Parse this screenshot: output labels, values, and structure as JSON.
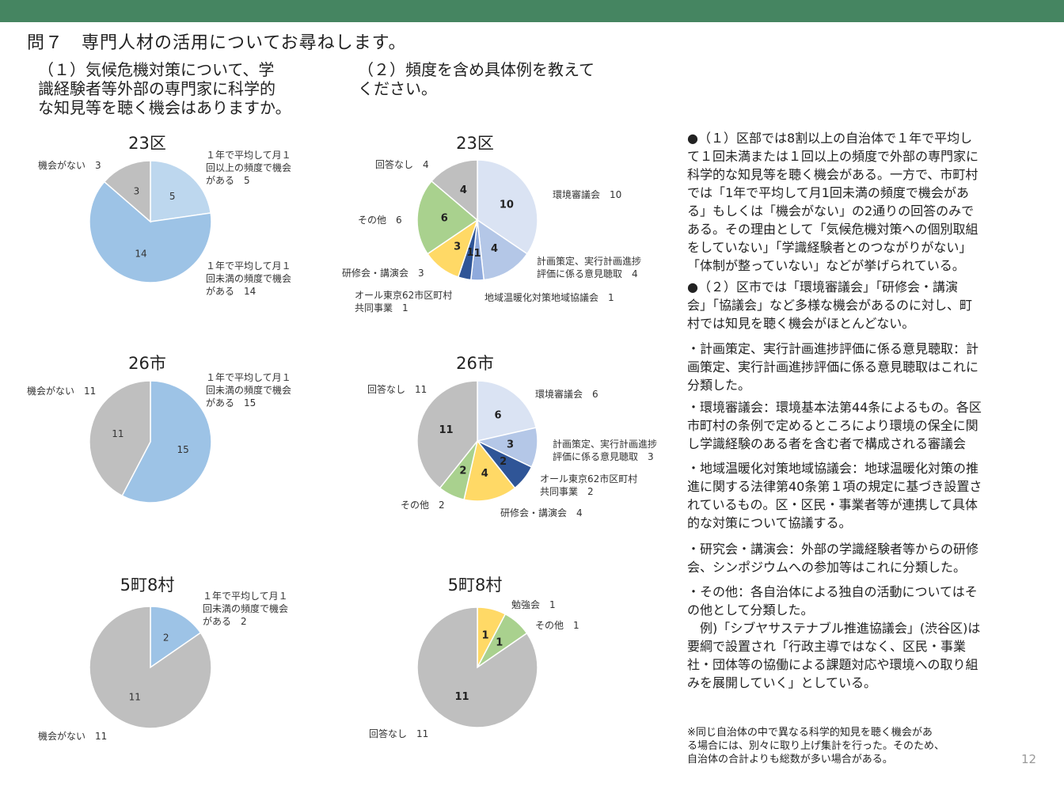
{
  "header": {
    "question": "問７　専門人材の活用についてお尋ねします。"
  },
  "subheads": {
    "q1": "（１）気候危機対策について、学\n識経験者等外部の専門家に科学的\nな知見等を聴く機会はありますか。",
    "q2": "（２）頻度を含め具体例を教えて\nください。"
  },
  "colors": {
    "band": "#458561",
    "light_blue": "#BDD7EE",
    "mid_blue": "#9DC3E6",
    "gray": "#BFBFBF",
    "pale_blue": "#DAE3F3",
    "periwinkle": "#B4C7E7",
    "navy": "#2F5597",
    "yellow": "#FFD966",
    "green": "#A9D18E",
    "white": "#FFFFFF"
  },
  "chart_data": [
    {
      "type": "pie",
      "title": "23区",
      "slices": [
        {
          "label": "１年で平均して月１\n回以上の頻度で機会\nがある　5",
          "value": 5,
          "color": "#BDD7EE"
        },
        {
          "label": "１年で平均して月１\n回未満の頻度で機会\nがある　14",
          "value": 14,
          "color": "#9DC3E6"
        },
        {
          "label": "機会がない　3",
          "value": 3,
          "color": "#BFBFBF"
        }
      ]
    },
    {
      "type": "pie",
      "title": "26市",
      "slices": [
        {
          "label": "１年で平均して月１\n回未満の頻度で機会\nがある　15",
          "value": 15,
          "color": "#9DC3E6"
        },
        {
          "label": "機会がない　11",
          "value": 11,
          "color": "#BFBFBF"
        }
      ]
    },
    {
      "type": "pie",
      "title": "5町8村",
      "slices": [
        {
          "label": "１年で平均して月１\n回未満の頻度で機会\nがある　2",
          "value": 2,
          "color": "#9DC3E6"
        },
        {
          "label": "機会がない　11",
          "value": 11,
          "color": "#BFBFBF"
        }
      ]
    },
    {
      "type": "pie",
      "title": "23区",
      "slices": [
        {
          "label": "環境審議会　10",
          "value": 10,
          "color": "#DAE3F3"
        },
        {
          "label": "計画策定、実行計画進捗\n評価に係る意見聴取　4",
          "value": 4,
          "color": "#B4C7E7"
        },
        {
          "label": "地域温暖化対策地域協議会　1",
          "value": 1,
          "color": "#8FAADC"
        },
        {
          "label": "オール東京62市区町村\n共同事業　1",
          "value": 1,
          "color": "#2F5597"
        },
        {
          "label": "研修会・講演会　3",
          "value": 3,
          "color": "#FFD966"
        },
        {
          "label": "その他　6",
          "value": 6,
          "color": "#A9D18E"
        },
        {
          "label": "回答なし　4",
          "value": 4,
          "color": "#BFBFBF"
        }
      ]
    },
    {
      "type": "pie",
      "title": "26市",
      "slices": [
        {
          "label": "環境審議会　6",
          "value": 6,
          "color": "#DAE3F3"
        },
        {
          "label": "計画策定、実行計画進捗\n評価に係る意見聴取　3",
          "value": 3,
          "color": "#B4C7E7"
        },
        {
          "label": "オール東京62市区町村\n共同事業　2",
          "value": 2,
          "color": "#2F5597"
        },
        {
          "label": "研修会・講演会　4",
          "value": 4,
          "color": "#FFD966"
        },
        {
          "label": "その他　2",
          "value": 2,
          "color": "#A9D18E"
        },
        {
          "label": "回答なし　11",
          "value": 11,
          "color": "#BFBFBF"
        }
      ]
    },
    {
      "type": "pie",
      "title": "5町8村",
      "slices": [
        {
          "label": "勉強会　1",
          "value": 1,
          "color": "#FFD966"
        },
        {
          "label": "その他　1",
          "value": 1,
          "color": "#A9D18E"
        },
        {
          "label": "回答なし　11",
          "value": 11,
          "color": "#BFBFBF"
        }
      ]
    }
  ],
  "right_panel": {
    "p1": "●（１）区部では8割以上の自治体で１年で平均し\nて１回未満または１回以上の頻度で外部の専門家に\n科学的な知見等を聴く機会がある。一方で、市町村\nでは「1年で平均して月1回未満の頻度で機会があ\nる」もしくは「機会がない」の2通りの回答のみで\nある。その理由として「気候危機対策への個別取組\nをしていない」「学識経験者とのつながりがない」\n「体制が整っていない」などが挙げられている。",
    "p2": "●（２）区市では「環境審議会」「研修会・講演\n会」「協議会」など多様な機会があるのに対し、町\n村では知見を聴く機会がほとんどない。",
    "p3": "・計画策定、実行計画進捗評価に係る意見聴取：計\n画策定、実行計画進捗評価に係る意見聴取はこれに\n分類した。",
    "p4": "・環境審議会：環境基本法第44条によるもの。各区\n市町村の条例で定めるところにより環境の保全に関\nし学識経験のある者を含む者で構成される審議会",
    "p5": "・地域温暖化対策地域協議会：地球温暖化対策の推\n進に関する法律第40条第１項の規定に基づき設置さ\nれているもの。区・区民・事業者等が連携して具体\n的な対策について協議する。",
    "p6": "・研究会・講演会：外部の学識経験者等からの研修\n会、シンポジウムへの参加等はこれに分類した。",
    "p7": "・その他：各自治体による独自の活動についてはそ\nの他として分類した。\n　例)「シブヤサステナブル推進協議会」(渋谷区)は\n要綱で設置され「行政主導ではなく、区民・事業\n社・団体等の協働による課題対応や環境への取り組\nみを展開していく」としている。"
  },
  "note": "※同じ自治体の中で異なる科学的知見を聴く機会があ\nる場合には、別々に取り上げ集計を行った。そのため、\n自治体の合計よりも総数が多い場合がある。",
  "page_number": "12"
}
